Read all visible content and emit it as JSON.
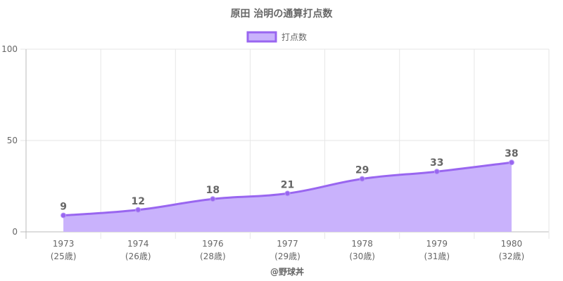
{
  "chart_data": {
    "type": "area",
    "title": "原田 治明の通算打点数",
    "series": [
      {
        "name": "打点数",
        "values": [
          9,
          12,
          18,
          21,
          29,
          33,
          38
        ]
      }
    ],
    "categories": [
      "1973",
      "1974",
      "1976",
      "1977",
      "1978",
      "1979",
      "1980"
    ],
    "ages": [
      "(25歳)",
      "(26歳)",
      "(28歳)",
      "(29歳)",
      "(30歳)",
      "(31歳)",
      "(32歳)"
    ],
    "ylim": [
      0,
      100
    ],
    "yticks": [
      0,
      50,
      100
    ],
    "grid": true,
    "legend": "top-center",
    "fill_color": "#c9b2fc",
    "line_color": "#9966f0",
    "data_labels": true
  },
  "credit": "@野球丼"
}
